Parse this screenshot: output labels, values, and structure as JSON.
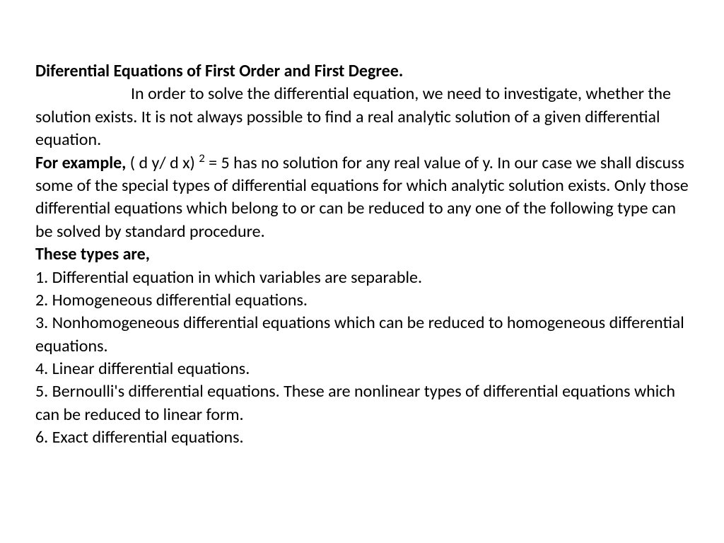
{
  "document": {
    "title": "Diferential Equations of First Order and First Degree.",
    "intro": "In order to solve the differential equation, we need to investigate, whether the solution exists. It is not always possible to find a real analytic solution of a given differential equation.",
    "example_label": "For example,",
    "example_text_1": " ( d y/ d x) ",
    "example_exponent": "2",
    "example_text_2": " = 5 has no solution for any real value of y. In our case we shall discuss some of the special types of differential equations for which analytic solution exists. Only those differential equations which belong to or can be reduced to any one of the following type can be solved by standard procedure.",
    "types_label": "These types are,",
    "item1": " 1. Differential equation in which variables are separable.",
    "item2": " 2. Homogeneous differential equations.",
    "item3": "3. Nonhomogeneous differential equations which can be reduced to homogeneous differential equations.",
    "item4": " 4. Linear differential equations.",
    "item5": " 5. Bernoulli's differential equations. These are nonlinear types of differential equations which can be reduced to linear form.",
    "item6": " 6. Exact differential equations.",
    "styling": {
      "background_color": "#ffffff",
      "text_color": "#000000",
      "font_family": "Calibri",
      "base_font_size": 24,
      "title_font_weight": "bold",
      "line_height": 1.35
    }
  }
}
